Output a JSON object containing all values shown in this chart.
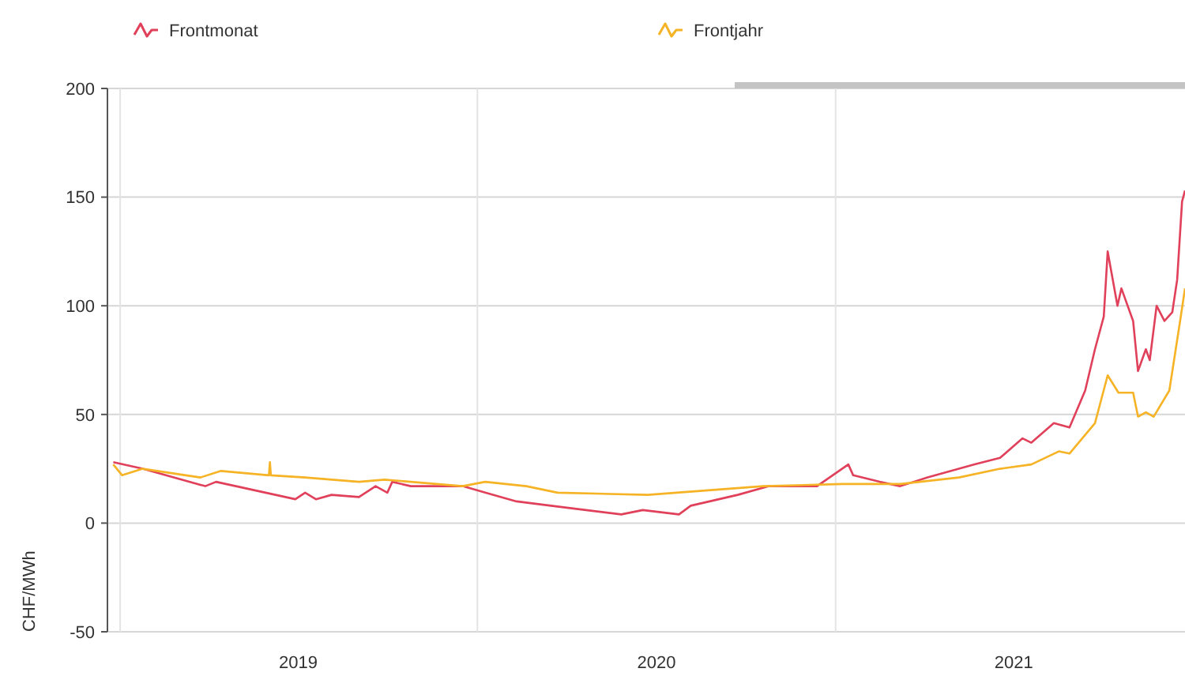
{
  "chart_data": {
    "type": "line",
    "ylabel": "CHF/MWh",
    "xlim": [
      "2018-12-19",
      "2021-12-24"
    ],
    "xticks": [
      {
        "value": "2019-01-01",
        "label": null
      },
      {
        "value": "2019-07-02",
        "label": "2019"
      },
      {
        "value": "2020-01-01",
        "label": null
      },
      {
        "value": "2020-07-02",
        "label": "2020"
      },
      {
        "value": "2021-01-01",
        "label": null
      },
      {
        "value": "2021-07-02",
        "label": "2021"
      }
    ],
    "ylim": [
      -50,
      200
    ],
    "yticks": [
      -50,
      0,
      50,
      100,
      150,
      200
    ],
    "grid": true,
    "legend": "top",
    "line_style": "solid",
    "marker": "none",
    "series": [
      {
        "name": "Frontmonat",
        "color": "#e0405a",
        "x": [
          "2018-12-25",
          "2019-01-24",
          "2019-03-29",
          "2019-04-09",
          "2019-06-29",
          "2019-07-09",
          "2019-07-20",
          "2019-08-05",
          "2019-09-02",
          "2019-09-19",
          "2019-10-01",
          "2019-10-06",
          "2019-10-25",
          "2019-12-17",
          "2020-01-09",
          "2020-02-10",
          "2020-04-03",
          "2020-05-27",
          "2020-06-18",
          "2020-07-25",
          "2020-08-06",
          "2020-09-23",
          "2020-10-25",
          "2020-12-13",
          "2021-01-14",
          "2021-01-19",
          "2021-02-15",
          "2021-03-08",
          "2021-04-05",
          "2021-05-07",
          "2021-05-23",
          "2021-06-18",
          "2021-07-11",
          "2021-07-20",
          "2021-08-12",
          "2021-08-28",
          "2021-09-13",
          "2021-09-23",
          "2021-10-02",
          "2021-10-06",
          "2021-10-16",
          "2021-10-20",
          "2021-11-01",
          "2021-11-06",
          "2021-11-14",
          "2021-11-18",
          "2021-11-25",
          "2021-12-03",
          "2021-12-11",
          "2021-12-16",
          "2021-12-21",
          "2021-12-24"
        ],
        "values": [
          28,
          25,
          17,
          19,
          11,
          14,
          11,
          13,
          12,
          17,
          14,
          19,
          17,
          17,
          14,
          10,
          7,
          4,
          6,
          4,
          8,
          13,
          17,
          17,
          27,
          22,
          19,
          17,
          21,
          25,
          27,
          30,
          39,
          37,
          46,
          44,
          61,
          80,
          95,
          125,
          100,
          108,
          93,
          70,
          80,
          75,
          100,
          93,
          97,
          112,
          148,
          153
        ]
      },
      {
        "name": "Frontjahr",
        "color": "#f5b325",
        "x": [
          "2018-12-25",
          "2019-01-03",
          "2019-01-24",
          "2019-03-24",
          "2019-04-14",
          "2019-06-02",
          "2019-06-03",
          "2019-06-04",
          "2019-07-09",
          "2019-09-02",
          "2019-09-28",
          "2019-12-17",
          "2020-01-09",
          "2020-02-20",
          "2020-03-23",
          "2020-06-23",
          "2020-10-19",
          "2021-01-08",
          "2021-03-08",
          "2021-05-07",
          "2021-06-18",
          "2021-07-20",
          "2021-08-17",
          "2021-08-28",
          "2021-09-23",
          "2021-10-06",
          "2021-10-17",
          "2021-11-01",
          "2021-11-06",
          "2021-11-14",
          "2021-11-22",
          "2021-12-08",
          "2021-12-19",
          "2021-12-24"
        ],
        "values": [
          27,
          22,
          25,
          21,
          24,
          22,
          28,
          22,
          21,
          19,
          20,
          17,
          19,
          17,
          14,
          13,
          17,
          18,
          18,
          21,
          25,
          27,
          33,
          32,
          46,
          68,
          60,
          60,
          49,
          51,
          49,
          61,
          93,
          108
        ]
      }
    ]
  }
}
